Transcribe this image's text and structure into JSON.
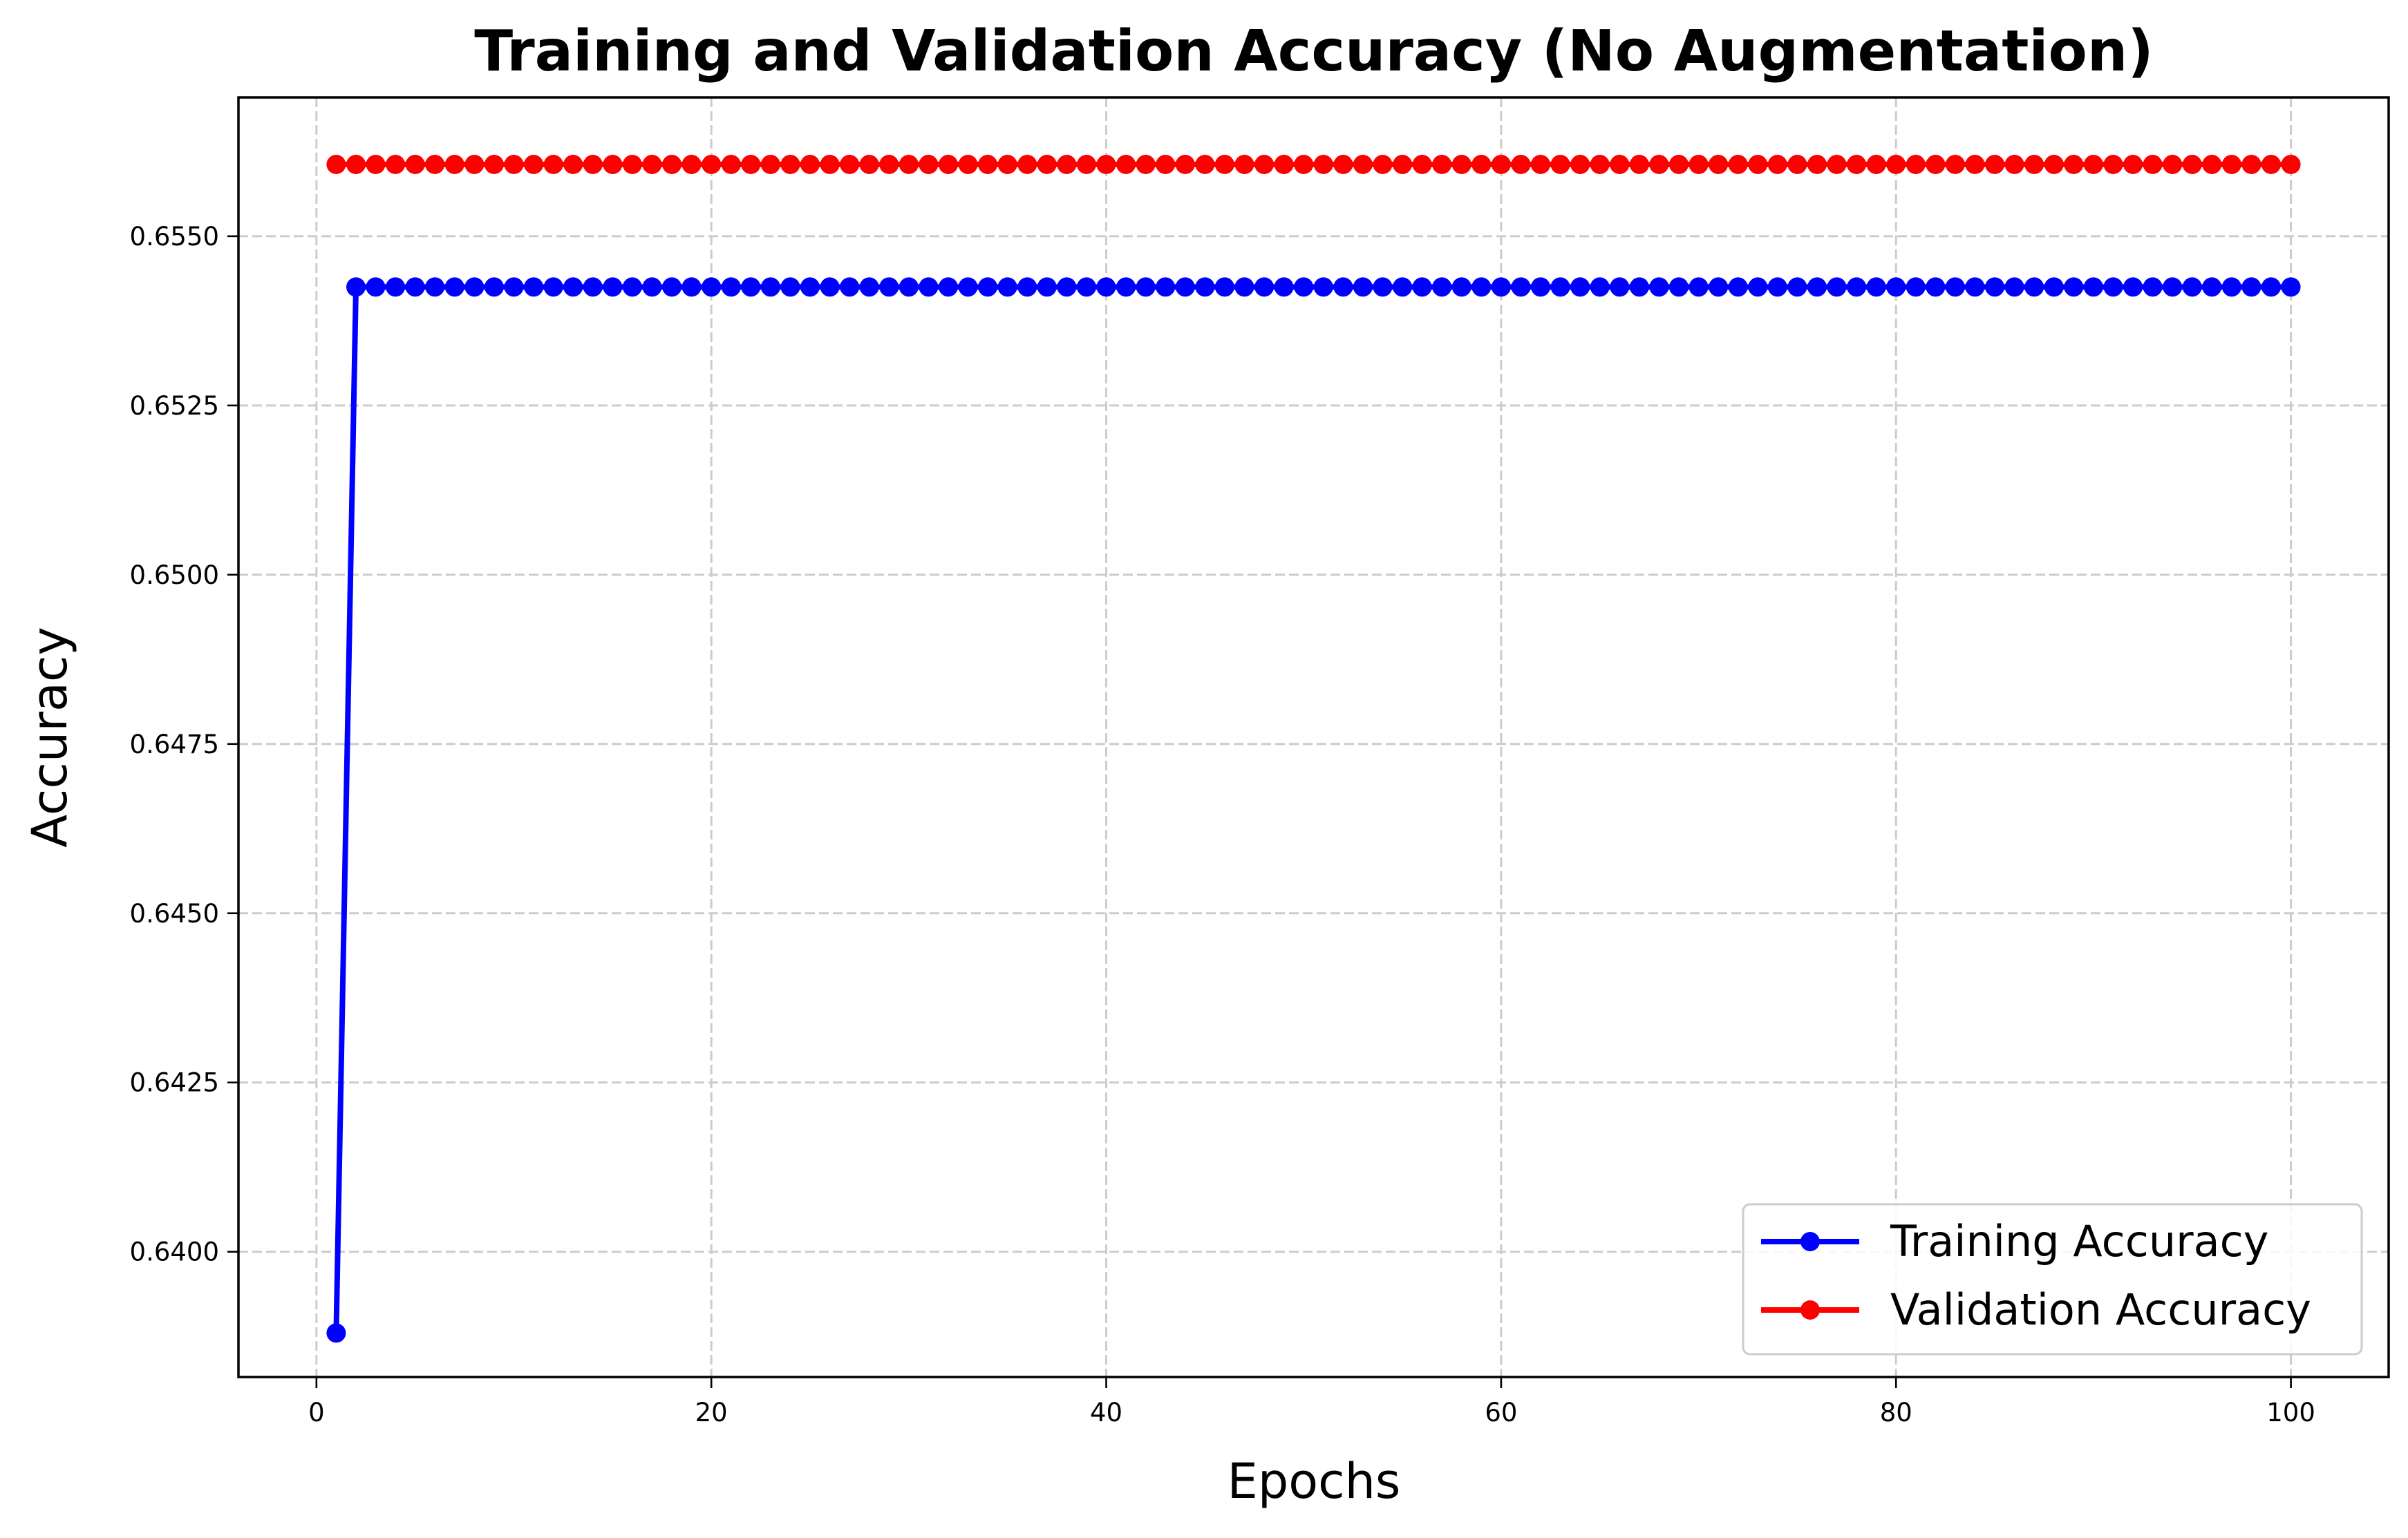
{
  "chart_data": {
    "type": "line",
    "title": "Training and Validation Accuracy (No Augmentation)",
    "xlabel": "Epochs",
    "ylabel": "Accuracy",
    "xlim": [
      -3.95,
      104.95
    ],
    "ylim": [
      0.63815,
      0.65705
    ],
    "xticks": [
      0,
      20,
      40,
      60,
      80,
      100
    ],
    "yticks": [
      0.64,
      0.6425,
      0.645,
      0.6475,
      0.65,
      0.6525,
      0.655
    ],
    "ytick_labels": [
      "0.6400",
      "0.6425",
      "0.6450",
      "0.6475",
      "0.6500",
      "0.6525",
      "0.6550"
    ],
    "grid": true,
    "legend_position": "lower-right",
    "series": [
      {
        "name": "Training Accuracy",
        "color": "#0000ff",
        "marker": "circle",
        "x_start": 1,
        "x_end": 100,
        "values": [
          0.6388,
          0.65425,
          0.65425,
          0.65425,
          0.65425,
          0.65425,
          0.65425,
          0.65425,
          0.65425,
          0.65425,
          0.65425,
          0.65425,
          0.65425,
          0.65425,
          0.65425,
          0.65425,
          0.65425,
          0.65425,
          0.65425,
          0.65425,
          0.65425,
          0.65425,
          0.65425,
          0.65425,
          0.65425,
          0.65425,
          0.65425,
          0.65425,
          0.65425,
          0.65425,
          0.65425,
          0.65425,
          0.65425,
          0.65425,
          0.65425,
          0.65425,
          0.65425,
          0.65425,
          0.65425,
          0.65425,
          0.65425,
          0.65425,
          0.65425,
          0.65425,
          0.65425,
          0.65425,
          0.65425,
          0.65425,
          0.65425,
          0.65425,
          0.65425,
          0.65425,
          0.65425,
          0.65425,
          0.65425,
          0.65425,
          0.65425,
          0.65425,
          0.65425,
          0.65425,
          0.65425,
          0.65425,
          0.65425,
          0.65425,
          0.65425,
          0.65425,
          0.65425,
          0.65425,
          0.65425,
          0.65425,
          0.65425,
          0.65425,
          0.65425,
          0.65425,
          0.65425,
          0.65425,
          0.65425,
          0.65425,
          0.65425,
          0.65425,
          0.65425,
          0.65425,
          0.65425,
          0.65425,
          0.65425,
          0.65425,
          0.65425,
          0.65425,
          0.65425,
          0.65425,
          0.65425,
          0.65425,
          0.65425,
          0.65425,
          0.65425,
          0.65425,
          0.65425,
          0.65425,
          0.65425,
          0.65425
        ]
      },
      {
        "name": "Validation Accuracy",
        "color": "#ff0000",
        "marker": "circle",
        "x_start": 1,
        "x_end": 100,
        "values": [
          0.65606,
          0.65606,
          0.65606,
          0.65606,
          0.65606,
          0.65606,
          0.65606,
          0.65606,
          0.65606,
          0.65606,
          0.65606,
          0.65606,
          0.65606,
          0.65606,
          0.65606,
          0.65606,
          0.65606,
          0.65606,
          0.65606,
          0.65606,
          0.65606,
          0.65606,
          0.65606,
          0.65606,
          0.65606,
          0.65606,
          0.65606,
          0.65606,
          0.65606,
          0.65606,
          0.65606,
          0.65606,
          0.65606,
          0.65606,
          0.65606,
          0.65606,
          0.65606,
          0.65606,
          0.65606,
          0.65606,
          0.65606,
          0.65606,
          0.65606,
          0.65606,
          0.65606,
          0.65606,
          0.65606,
          0.65606,
          0.65606,
          0.65606,
          0.65606,
          0.65606,
          0.65606,
          0.65606,
          0.65606,
          0.65606,
          0.65606,
          0.65606,
          0.65606,
          0.65606,
          0.65606,
          0.65606,
          0.65606,
          0.65606,
          0.65606,
          0.65606,
          0.65606,
          0.65606,
          0.65606,
          0.65606,
          0.65606,
          0.65606,
          0.65606,
          0.65606,
          0.65606,
          0.65606,
          0.65606,
          0.65606,
          0.65606,
          0.65606,
          0.65606,
          0.65606,
          0.65606,
          0.65606,
          0.65606,
          0.65606,
          0.65606,
          0.65606,
          0.65606,
          0.65606,
          0.65606,
          0.65606,
          0.65606,
          0.65606,
          0.65606,
          0.65606,
          0.65606,
          0.65606,
          0.65606,
          0.65606
        ]
      }
    ]
  }
}
